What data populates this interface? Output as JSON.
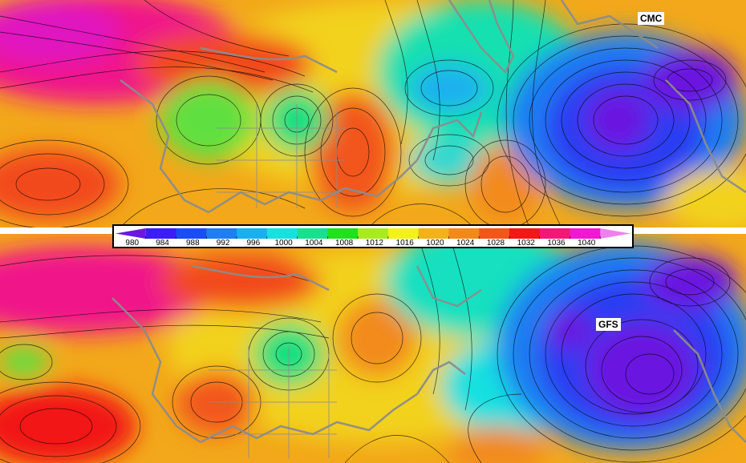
{
  "panels": {
    "top": {
      "model": "CMC"
    },
    "bottom": {
      "model": "GFS"
    }
  },
  "colorbar": {
    "unit": "",
    "ticks": [
      "980",
      "984",
      "988",
      "992",
      "996",
      "1000",
      "1004",
      "1008",
      "1012",
      "1016",
      "1020",
      "1024",
      "1028",
      "1032",
      "1036",
      "1040"
    ],
    "colors": [
      "#6a18e0",
      "#3a1ef2",
      "#1a4ef2",
      "#1f7ef2",
      "#1ab0f0",
      "#18e0e0",
      "#18e090",
      "#20e020",
      "#a8ec20",
      "#f2f21a",
      "#f2b21a",
      "#f28a1a",
      "#f2561a",
      "#f21818",
      "#f21878",
      "#f018d0",
      "#f080f0"
    ]
  },
  "colors": {
    "contour_line": "#000000",
    "boundary": "#8c8c8c",
    "background": "#ffffff"
  }
}
